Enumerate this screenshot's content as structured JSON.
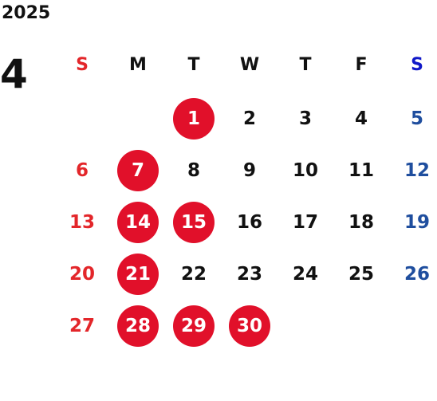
{
  "year": "2025",
  "month": "4",
  "weekdays": [
    "S",
    "M",
    "T",
    "W",
    "T",
    "F",
    "S"
  ],
  "weeks": [
    [
      "",
      "",
      "1",
      "2",
      "3",
      "4",
      "5"
    ],
    [
      "6",
      "7",
      "8",
      "9",
      "10",
      "11",
      "12"
    ],
    [
      "13",
      "14",
      "15",
      "16",
      "17",
      "18",
      "19"
    ],
    [
      "20",
      "21",
      "22",
      "23",
      "24",
      "25",
      "26"
    ],
    [
      "27",
      "28",
      "29",
      "30",
      "",
      "",
      ""
    ]
  ],
  "highlighted_days": [
    "1",
    "7",
    "14",
    "15",
    "21",
    "28",
    "29",
    "30"
  ],
  "colors": {
    "sunday": "#e3262a",
    "saturday": "#1f4e9e",
    "highlight": "#e1102a",
    "text": "#111111"
  }
}
